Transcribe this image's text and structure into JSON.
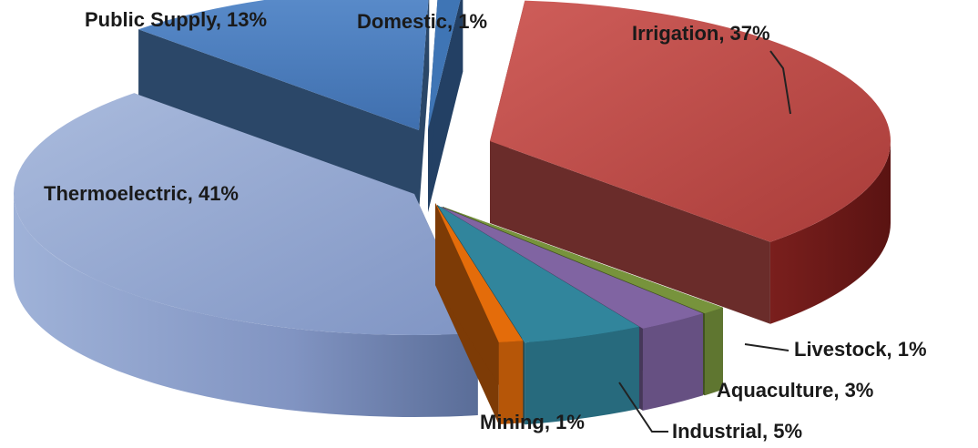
{
  "chart_data": {
    "type": "pie",
    "style": "3d-exploded",
    "slices": [
      {
        "key": "irrigation",
        "label": "Irrigation, 37%",
        "value": 37,
        "color": "#c0504d"
      },
      {
        "key": "livestock",
        "label": "Livestock, 1%",
        "value": 1,
        "color": "#77933c"
      },
      {
        "key": "aquaculture",
        "label": "Aquaculture, 3%",
        "value": 3,
        "color": "#8064a2"
      },
      {
        "key": "industrial",
        "label": "Industrial, 5%",
        "value": 5,
        "color": "#31859c"
      },
      {
        "key": "mining",
        "label": "Mining, 1%",
        "value": 1,
        "color": "#e46c0a"
      },
      {
        "key": "thermoelectric",
        "label": "Thermoelectric, 41%",
        "value": 41,
        "color": "#8ea3cf"
      },
      {
        "key": "public-supply",
        "label": "Public Supply, 13%",
        "value": 13,
        "color": "#4f81bd"
      },
      {
        "key": "domestic",
        "label": "Domestic, 1%",
        "value": 1,
        "color": "#3f75b5"
      }
    ]
  }
}
